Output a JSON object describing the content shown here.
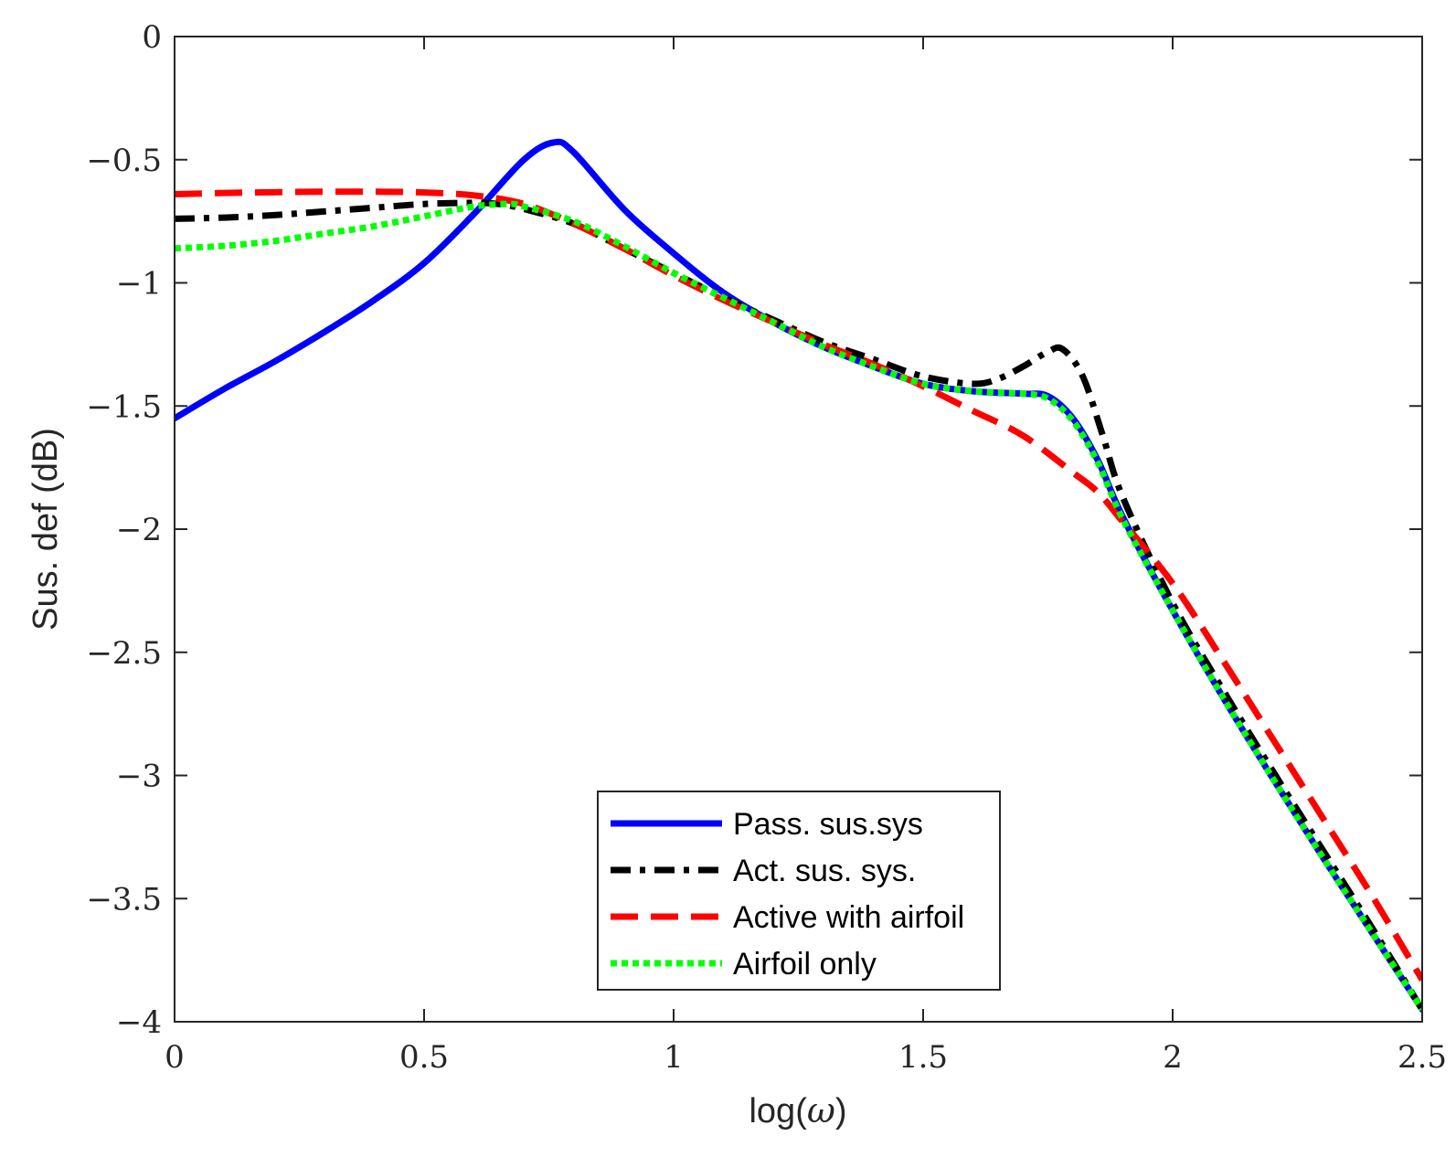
{
  "chart_data": {
    "type": "line",
    "title": "",
    "xlabel": "log(ω)",
    "xlabel_prefix": "log(",
    "xlabel_symbol": "ω",
    "xlabel_suffix": ")",
    "ylabel": "Sus. def (dB)",
    "xlim": [
      0,
      2.5
    ],
    "ylim": [
      -4,
      0
    ],
    "xticks": [
      0,
      0.5,
      1,
      1.5,
      2,
      2.5
    ],
    "xtick_labels": [
      "0",
      "0.5",
      "1",
      "1.5",
      "2",
      "2.5"
    ],
    "yticks": [
      0,
      -0.5,
      -1,
      -1.5,
      -2,
      -2.5,
      -3,
      -3.5,
      -4
    ],
    "ytick_labels": [
      "0",
      "−0.5",
      "−1",
      "−1.5",
      "−2",
      "−2.5",
      "−3",
      "−3.5",
      "−4"
    ],
    "grid": false,
    "legend_position": "bottom-center",
    "series": [
      {
        "name": "Pass. sus.sys",
        "color": "#0000ff",
        "style": "solid",
        "x": [
          0,
          0.1,
          0.2,
          0.3,
          0.4,
          0.5,
          0.6,
          0.7,
          0.76,
          0.8,
          0.9,
          1.0,
          1.1,
          1.2,
          1.3,
          1.4,
          1.5,
          1.6,
          1.7,
          1.75,
          1.8,
          1.85,
          1.9,
          2.0,
          2.1,
          2.2,
          2.3,
          2.4,
          2.5
        ],
        "y": [
          -1.55,
          -1.43,
          -1.32,
          -1.2,
          -1.07,
          -0.92,
          -0.72,
          -0.5,
          -0.43,
          -0.47,
          -0.7,
          -0.88,
          -1.04,
          -1.16,
          -1.26,
          -1.34,
          -1.41,
          -1.44,
          -1.45,
          -1.46,
          -1.55,
          -1.72,
          -1.95,
          -2.33,
          -2.68,
          -3.01,
          -3.33,
          -3.64,
          -3.95
        ]
      },
      {
        "name": "Act. sus. sys.",
        "color": "#000000",
        "style": "dashdot",
        "x": [
          0,
          0.1,
          0.2,
          0.3,
          0.4,
          0.5,
          0.6,
          0.65,
          0.7,
          0.8,
          0.9,
          1.0,
          1.1,
          1.2,
          1.3,
          1.4,
          1.5,
          1.6,
          1.65,
          1.7,
          1.75,
          1.78,
          1.82,
          1.86,
          1.9,
          2.0,
          2.1,
          2.2,
          2.3,
          2.4,
          2.5
        ],
        "y": [
          -0.74,
          -0.735,
          -0.725,
          -0.71,
          -0.695,
          -0.68,
          -0.675,
          -0.68,
          -0.7,
          -0.76,
          -0.86,
          -0.96,
          -1.06,
          -1.15,
          -1.24,
          -1.31,
          -1.38,
          -1.41,
          -1.39,
          -1.34,
          -1.28,
          -1.27,
          -1.38,
          -1.62,
          -1.87,
          -2.3,
          -2.65,
          -2.98,
          -3.3,
          -3.62,
          -3.95
        ]
      },
      {
        "name": "Active with airfoil",
        "color": "#ff0000",
        "style": "dashed",
        "x": [
          0,
          0.1,
          0.2,
          0.3,
          0.4,
          0.5,
          0.6,
          0.7,
          0.8,
          0.9,
          1.0,
          1.1,
          1.2,
          1.3,
          1.4,
          1.5,
          1.6,
          1.7,
          1.8,
          1.85,
          1.9,
          2.0,
          2.1,
          2.2,
          2.3,
          2.4,
          2.5
        ],
        "y": [
          -0.64,
          -0.635,
          -0.632,
          -0.63,
          -0.63,
          -0.633,
          -0.645,
          -0.68,
          -0.76,
          -0.86,
          -0.97,
          -1.07,
          -1.16,
          -1.25,
          -1.33,
          -1.42,
          -1.52,
          -1.62,
          -1.77,
          -1.85,
          -1.97,
          -2.22,
          -2.53,
          -2.85,
          -3.17,
          -3.49,
          -3.83
        ]
      },
      {
        "name": "Airfoil only",
        "color": "#00ff00",
        "style": "dotted",
        "x": [
          0,
          0.1,
          0.2,
          0.3,
          0.4,
          0.5,
          0.6,
          0.67,
          0.7,
          0.8,
          0.9,
          1.0,
          1.1,
          1.2,
          1.3,
          1.4,
          1.5,
          1.6,
          1.7,
          1.75,
          1.8,
          1.85,
          1.9,
          2.0,
          2.1,
          2.2,
          2.3,
          2.4,
          2.5
        ],
        "y": [
          -0.86,
          -0.85,
          -0.83,
          -0.8,
          -0.77,
          -0.73,
          -0.69,
          -0.68,
          -0.69,
          -0.75,
          -0.85,
          -0.96,
          -1.06,
          -1.16,
          -1.26,
          -1.34,
          -1.41,
          -1.44,
          -1.45,
          -1.47,
          -1.56,
          -1.73,
          -1.96,
          -2.33,
          -2.68,
          -3.01,
          -3.33,
          -3.64,
          -3.95
        ]
      }
    ]
  }
}
